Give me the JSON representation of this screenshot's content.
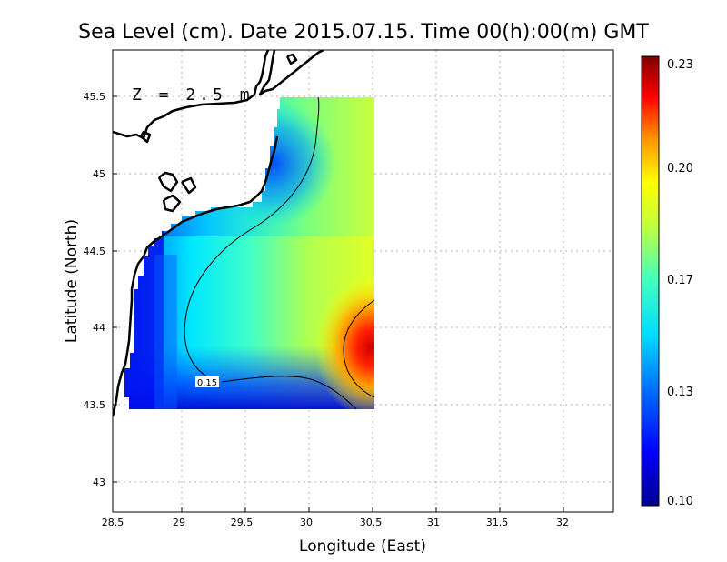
{
  "title": "Sea Level (cm). Date 2015.07.15. Time 00(h):00(m) GMT",
  "depth_label": "Z = 2.5 m",
  "xlabel": "Longitude (East)",
  "ylabel": "Latitude (North)",
  "contour_label": "0.15",
  "chart_data": {
    "type": "heatmap",
    "title": "Sea Level (cm). Date 2015.07.15. Time 00(h):00(m) GMT",
    "xlabel": "Longitude (East)",
    "ylabel": "Latitude (North)",
    "xlim": [
      28.5,
      32.4
    ],
    "ylim": [
      42.8,
      45.8
    ],
    "x_ticks": [
      "28.5",
      "29",
      "29.5",
      "30",
      "30.5",
      "31",
      "31.5",
      "32"
    ],
    "x_tick_values": [
      28.5,
      29,
      29.5,
      30,
      30.5,
      31,
      31.5,
      32
    ],
    "y_ticks": [
      "43",
      "43.5",
      "44",
      "44.5",
      "45",
      "45.5"
    ],
    "y_tick_values": [
      43,
      43.5,
      44,
      44.5,
      45,
      45.5
    ],
    "grid": true,
    "colorbar": {
      "min": 0.1,
      "max": 0.23,
      "tick_labels": [
        "0.23",
        "0.20",
        "0.17",
        "0.13",
        "0.10"
      ],
      "tick_values": [
        0.23,
        0.2,
        0.17,
        0.13,
        0.1
      ],
      "colormap": [
        "#00008f",
        "#0000ff",
        "#00a0ff",
        "#00ffff",
        "#80ff80",
        "#ffff00",
        "#ff8000",
        "#ff0000",
        "#800000"
      ]
    },
    "field_extent": {
      "lon": [
        28.63,
        30.55
      ],
      "lat": [
        43.48,
        45.5
      ]
    },
    "contour_levels": [
      0.15
    ]
  }
}
